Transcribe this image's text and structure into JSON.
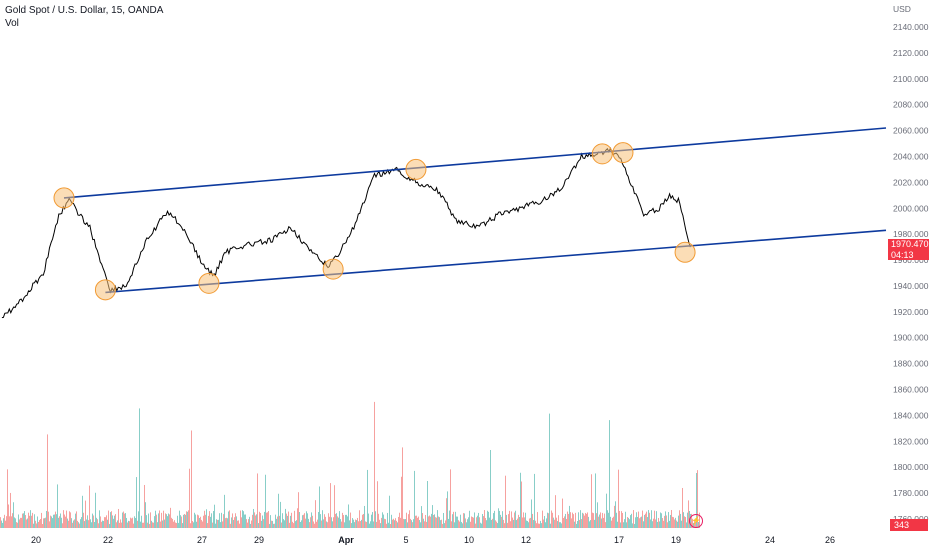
{
  "header": {
    "symbol_line": "Gold Spot / U.S. Dollar, 15, OANDA",
    "volume_label": "Vol"
  },
  "currency_label": "USD",
  "last_price_tag": {
    "price": "1970.470",
    "countdown": "04:13"
  },
  "volume_tag": "343",
  "colors": {
    "price_line": "#000000",
    "channel": "#0d3a9e",
    "marker_fill": "#f7c17a",
    "marker_stroke": "#f19a33",
    "volume_up": "#26a69a",
    "volume_down": "#ef5350",
    "tag_red": "#f23645",
    "axis_text": "#6a6d78"
  },
  "chart_data": {
    "type": "line",
    "title": "Gold Spot / U.S. Dollar, 15, OANDA",
    "y_axis_ticks": [
      "2140.000",
      "2120.000",
      "2100.000",
      "2080.000",
      "2060.000",
      "2040.000",
      "2020.000",
      "2000.000",
      "1980.000",
      "1960.000",
      "1940.000",
      "1920.000",
      "1900.000",
      "1880.000",
      "1860.000",
      "1840.000",
      "1820.000",
      "1800.000",
      "1780.000",
      "1760.000"
    ],
    "ylim": [
      1750,
      2150
    ],
    "x_axis_ticks": [
      "20",
      "22",
      "27",
      "29",
      "Apr",
      "5",
      "10",
      "12",
      "17",
      "19",
      "24",
      "26"
    ],
    "series": [
      {
        "name": "",
        "x": [
          "Mar 17",
          "Mar 18",
          "Mar 19",
          "Mar 20",
          "Mar 20",
          "Mar 21",
          "Mar 21",
          "Mar 22",
          "Mar 22",
          "Mar 23",
          "Mar 24",
          "Mar 25",
          "Mar 26",
          "Mar 26",
          "Mar 27",
          "Mar 27",
          "Mar 28",
          "Mar 28",
          "Mar 29",
          "Mar 30",
          "Mar 31",
          "Apr 1",
          "Apr 2",
          "Apr 2",
          "Apr 3",
          "Apr 4",
          "Apr 5",
          "Apr 6",
          "Apr 7",
          "Apr 8",
          "Apr 9",
          "Apr 10",
          "Apr 11",
          "Apr 12",
          "Apr 13",
          "Apr 14",
          "Apr 15",
          "Apr 15",
          "Apr 16",
          "Apr 16",
          "Apr 17",
          "Apr 18",
          "Apr 18",
          "Apr 19",
          "Apr 19"
        ],
        "values": [
          1915,
          1930,
          1950,
          1995,
          2006,
          1995,
          1985,
          1960,
          1937,
          1940,
          1975,
          1998,
          1985,
          1970,
          1955,
          1948,
          1965,
          1970,
          1972,
          1975,
          1985,
          1965,
          1955,
          1965,
          1985,
          2025,
          2030,
          2020,
          2015,
          1990,
          1985,
          1995,
          2000,
          2005,
          2015,
          2040,
          2042,
          2045,
          2042,
          2025,
          1995,
          2000,
          2010,
          2005,
          1970
        ]
      }
    ],
    "channel_lines": [
      {
        "from": [
          "Mar 20",
          2008
        ],
        "to": [
          "Apr 26",
          2062
        ]
      },
      {
        "from": [
          "Mar 22",
          1935
        ],
        "to": [
          "Apr 26",
          1983
        ]
      }
    ],
    "touch_points": [
      [
        "Mar 20",
        2008
      ],
      [
        "Mar 22",
        1937
      ],
      [
        "Mar 27",
        1942
      ],
      [
        "Apr 2",
        1953
      ],
      [
        "Apr 6",
        2030
      ],
      [
        "Apr 15",
        2042
      ],
      [
        "Apr 16",
        2043
      ],
      [
        "Apr 19",
        1966
      ]
    ],
    "volume_series": {
      "name": "Vol",
      "note_values_relative": true
    }
  }
}
